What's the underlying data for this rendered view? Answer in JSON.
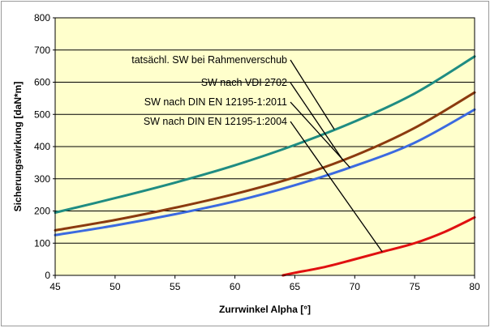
{
  "chart_data": {
    "type": "line",
    "xlabel": "Zurrwinkel Alpha [°]",
    "ylabel": "Sicherungswirkung [daN*m]",
    "xlim": [
      45,
      80
    ],
    "ylim": [
      0,
      800
    ],
    "xticks": [
      45,
      50,
      55,
      60,
      65,
      70,
      75,
      80
    ],
    "yticks": [
      0,
      100,
      200,
      300,
      400,
      500,
      600,
      700,
      800
    ],
    "grid": true,
    "plot_background": "#ffffcc",
    "series": [
      {
        "name": "tatsächl. SW bei Rahmenverschub",
        "color": "#1f8c82",
        "x": [
          45,
          50,
          55,
          60,
          65,
          70,
          75,
          80
        ],
        "values": [
          195,
          240,
          288,
          342,
          405,
          478,
          565,
          680
        ]
      },
      {
        "name": "SW nach VDI 2702",
        "color": "#8b3a0f",
        "x": [
          45,
          50,
          55,
          60,
          65,
          70,
          75,
          80
        ],
        "values": [
          140,
          172,
          210,
          253,
          305,
          372,
          458,
          568
        ]
      },
      {
        "name": "SW nach DIN EN 12195-1:2011",
        "color": "#3b6ae0",
        "x": [
          45,
          50,
          55,
          60,
          65,
          70,
          75,
          80
        ],
        "values": [
          125,
          155,
          190,
          230,
          280,
          340,
          412,
          515
        ]
      },
      {
        "name": "SW nach DIN EN 12195-1:2004",
        "color": "#e01010",
        "x": [
          64,
          65,
          67.5,
          70,
          72.5,
          75,
          77.5,
          80
        ],
        "values": [
          0,
          8,
          26,
          50,
          75,
          100,
          135,
          180
        ]
      }
    ],
    "annotations": [
      {
        "series": 0,
        "x": 68.3,
        "label_line": 0
      },
      {
        "series": 1,
        "x": 69.0,
        "label_line": 1
      },
      {
        "series": 2,
        "x": 69.6,
        "label_line": 2
      },
      {
        "series": 3,
        "x": 72.3,
        "label_line": 3
      }
    ]
  }
}
